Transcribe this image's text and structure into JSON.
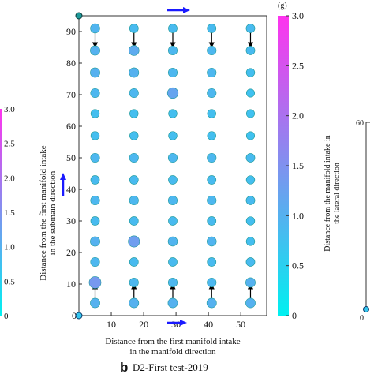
{
  "chart_data": {
    "type": "scatter",
    "xlabel": "Distance from the first manifold intake in the manifold direction",
    "xlabel_lines": [
      "Distance from the first manifold intake",
      "in the manifold direction"
    ],
    "ylabel": "Distance from the first manifold intake in the submain direction",
    "ylabel_lines": [
      "Distance from the first manifold intake",
      "in the submain direction"
    ],
    "caption_letter": "b",
    "caption_text": "D2-First test-2019",
    "xlim": [
      0,
      58
    ],
    "ylim": [
      0,
      95
    ],
    "x_ticks": [
      0,
      10,
      20,
      30,
      40,
      50
    ],
    "y_ticks": [
      10,
      20,
      30,
      40,
      50,
      60,
      70,
      80,
      90
    ],
    "origin_label": "0",
    "x": [
      5,
      17,
      29,
      41,
      53
    ],
    "y": [
      4,
      10.5,
      17,
      23.5,
      30,
      36.5,
      43,
      50,
      57,
      64,
      70.5,
      77,
      84,
      91
    ],
    "values": [
      [
        1.0,
        1.0,
        1.0,
        1.0,
        1.0
      ],
      [
        1.4,
        0.9,
        0.9,
        0.9,
        1.0
      ],
      [
        0.9,
        0.85,
        0.85,
        0.85,
        0.85
      ],
      [
        1.0,
        1.3,
        0.95,
        0.95,
        0.8
      ],
      [
        0.85,
        0.85,
        0.85,
        0.85,
        0.8
      ],
      [
        0.9,
        0.9,
        0.9,
        0.9,
        0.85
      ],
      [
        0.85,
        0.85,
        0.85,
        0.85,
        0.8
      ],
      [
        0.9,
        0.9,
        0.9,
        0.9,
        0.85
      ],
      [
        0.8,
        0.8,
        0.8,
        0.8,
        0.75
      ],
      [
        0.8,
        0.8,
        0.8,
        0.8,
        0.75
      ],
      [
        0.9,
        0.9,
        1.2,
        0.9,
        0.75
      ],
      [
        1.0,
        1.0,
        0.9,
        0.9,
        0.8
      ],
      [
        1.0,
        1.1,
        0.9,
        0.9,
        0.85
      ],
      [
        0.95,
        0.85,
        0.85,
        0.85,
        0.85
      ]
    ],
    "colorbar": {
      "unit": "(g)",
      "range": [
        0,
        3.0
      ],
      "ticks": [
        "0",
        "0.5",
        "1.0",
        "1.5",
        "2.0",
        "2.5",
        "3.0"
      ],
      "colors": [
        "#00f0f0",
        "#ff33ee"
      ]
    },
    "left_colorbar_ticks": [
      "0",
      "0.5",
      "1.0",
      "1.5",
      "2.0",
      "2.5",
      "3.0"
    ],
    "right_panel": {
      "ylabel_lines": [
        "Distance from the manifold intake in",
        "the lateral direction"
      ],
      "top_tick": "60",
      "zero_label": "0"
    },
    "flow_arrows": [
      "manifold-direction",
      "submain-direction",
      "top-row-inflow",
      "bottom-row-inflow"
    ],
    "arrow_color": "#1a1aff",
    "point_edge_color": "#1e9a9a"
  }
}
